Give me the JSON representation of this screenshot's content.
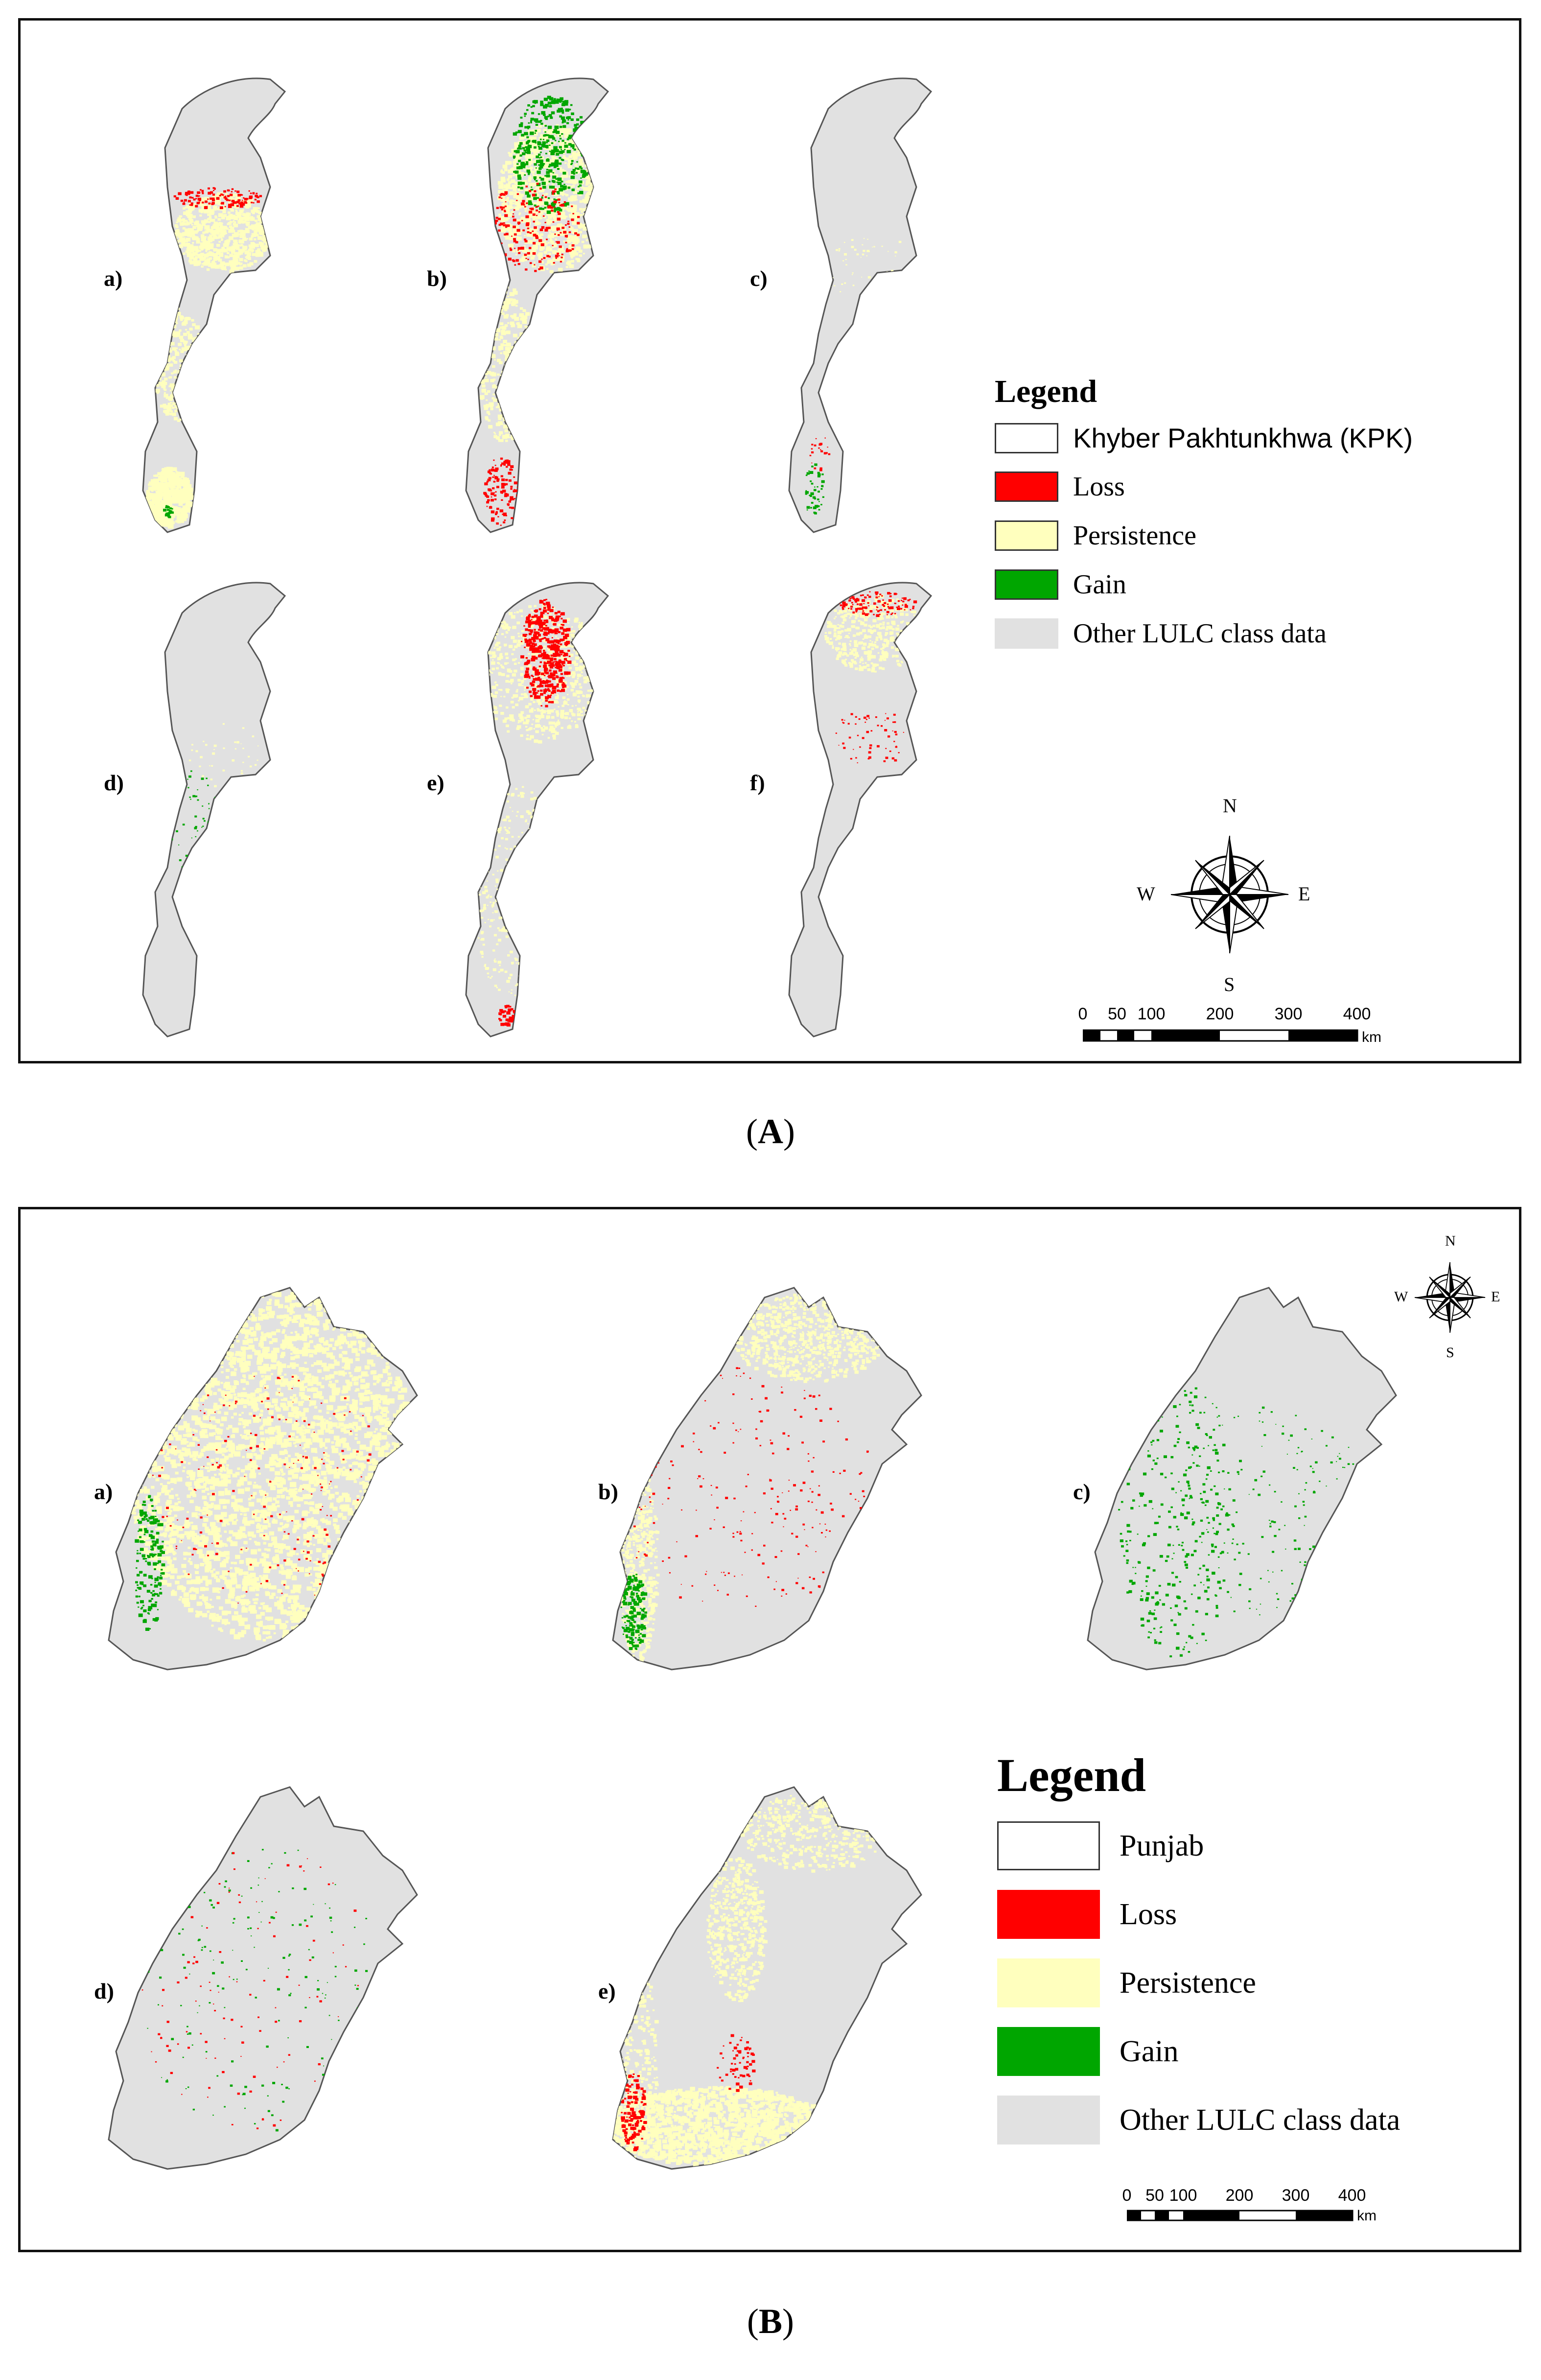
{
  "colors": {
    "loss": "#ff0000",
    "persistence": "#ffffbe",
    "gain": "#00a600",
    "other": "#e1e1e1",
    "boundary": "#555555"
  },
  "figure_a": {
    "caption_letter": "A",
    "panels": [
      "a)",
      "b)",
      "c)",
      "d)",
      "e)",
      "f)"
    ],
    "legend": {
      "title": "Legend",
      "items": [
        {
          "label": "Khyber Pakhtunkhwa (KPK)",
          "color": "#ffffff"
        },
        {
          "label": "Loss",
          "color": "#ff0000"
        },
        {
          "label": "Persistence",
          "color": "#ffffbe"
        },
        {
          "label": "Gain",
          "color": "#00a600"
        },
        {
          "label": "Other LULC class data",
          "color": "#e1e1e1"
        }
      ]
    },
    "compass": {
      "n": "N",
      "s": "S",
      "e": "E",
      "w": "W",
      "icon": "compass-rose-icon"
    },
    "scalebar": {
      "ticks": [
        "0",
        "50",
        "100",
        "200",
        "300",
        "400"
      ],
      "unit": "km"
    }
  },
  "figure_b": {
    "caption_letter": "B",
    "panels": [
      "a)",
      "b)",
      "c)",
      "d)",
      "e)"
    ],
    "legend": {
      "title": "Legend",
      "items": [
        {
          "label": "Punjab",
          "color": "#ffffff"
        },
        {
          "label": "Loss",
          "color": "#ff0000"
        },
        {
          "label": "Persistence",
          "color": "#ffffbe"
        },
        {
          "label": "Gain",
          "color": "#00a600"
        },
        {
          "label": "Other LULC class data",
          "color": "#e1e1e1"
        }
      ]
    },
    "compass": {
      "n": "N",
      "s": "S",
      "e": "E",
      "w": "W",
      "icon": "compass-rose-icon"
    },
    "scalebar": {
      "ticks": [
        "0",
        "50",
        "100",
        "200",
        "300",
        "400"
      ],
      "unit": "km"
    }
  }
}
